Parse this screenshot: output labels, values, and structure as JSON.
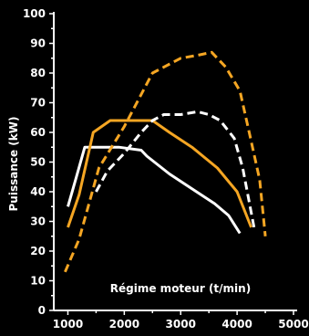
{
  "chart_data": {
    "type": "line",
    "xlabel": "Régime moteur (t/min)",
    "ylabel": "Puissance (kW)",
    "xlim": [
      750,
      5000
    ],
    "ylim": [
      0,
      100
    ],
    "xticks": [
      1000,
      2000,
      3000,
      4000,
      5000
    ],
    "yticks": [
      0,
      10,
      20,
      30,
      40,
      50,
      60,
      70,
      80,
      90,
      100
    ],
    "grid": false,
    "series": [
      {
        "color": "#ffffff",
        "style": "solid",
        "x": [
          1000,
          1150,
          1300,
          1900,
          2300,
          2400,
          2800,
          3200,
          3600,
          3850,
          4050
        ],
        "y": [
          35,
          45,
          55,
          55,
          54,
          52,
          46,
          41,
          36,
          32,
          26
        ]
      },
      {
        "color": "#f5a623",
        "style": "solid",
        "x": [
          1000,
          1200,
          1450,
          1750,
          2500,
          2800,
          3200,
          3650,
          4000,
          4250
        ],
        "y": [
          28,
          39,
          60,
          64,
          64,
          60,
          55,
          48,
          40,
          28
        ]
      },
      {
        "color": "#ffffff",
        "style": "dashed",
        "x": [
          1500,
          1700,
          2000,
          2300,
          2500,
          2700,
          3000,
          3300,
          3500,
          3700,
          3950,
          4100,
          4300
        ],
        "y": [
          40,
          47,
          53,
          60,
          64,
          66,
          66,
          67,
          66,
          64,
          58,
          48,
          28
        ]
      },
      {
        "color": "#f5a623",
        "style": "dashed",
        "x": [
          950,
          1200,
          1550,
          2000,
          2500,
          3000,
          3300,
          3550,
          3800,
          4050,
          4250,
          4400,
          4500
        ],
        "y": [
          13,
          24,
          48,
          62,
          80,
          85,
          86,
          87,
          82,
          74,
          57,
          44,
          25
        ]
      }
    ]
  }
}
